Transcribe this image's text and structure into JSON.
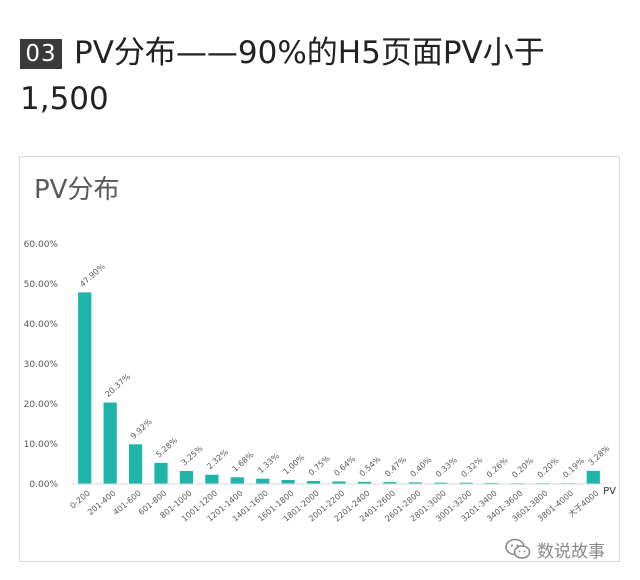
{
  "header": {
    "section_number": "03",
    "title_line1": "PV分布——90%的H5页面PV小于",
    "title_line2": "1,500"
  },
  "watermark": {
    "icon": "wechat-icon",
    "text": "数说故事"
  },
  "colors": {
    "bar": "#1fb5a8",
    "axis": "#d9d9d9",
    "tick_text": "#595959"
  },
  "chart_data": {
    "type": "bar",
    "title": "PV分布",
    "xlabel": "PV",
    "ylabel": "",
    "ylim": [
      0,
      60
    ],
    "yticks": [
      "0.00%",
      "10.00%",
      "20.00%",
      "30.00%",
      "40.00%",
      "50.00%",
      "60.00%"
    ],
    "grid": false,
    "categories": [
      "0-200",
      "201-400",
      "401-600",
      "601-800",
      "801-1000",
      "1001-1200",
      "1201-1400",
      "1401-1600",
      "1601-1800",
      "1801-2000",
      "2001-2200",
      "2201-2400",
      "2401-2600",
      "2601-2800",
      "2801-3000",
      "3001-3200",
      "3201-3400",
      "3401-3600",
      "3601-3800",
      "3801-4000",
      "大于4000"
    ],
    "values": [
      47.9,
      20.37,
      9.92,
      5.28,
      3.25,
      2.32,
      1.68,
      1.33,
      1.0,
      0.75,
      0.64,
      0.54,
      0.47,
      0.4,
      0.33,
      0.32,
      0.26,
      0.2,
      0.2,
      0.19,
      3.28
    ],
    "data_labels": [
      "47.90%",
      "20.37%",
      "9.92%",
      "5.28%",
      "3.25%",
      "2.32%",
      "1.68%",
      "1.33%",
      "1.00%",
      "0.75%",
      "0.64%",
      "0.54%",
      "0.47%",
      "0.40%",
      "0.33%",
      "0.32%",
      "0.26%",
      "0.20%",
      "0.20%",
      "0.19%",
      "3.28%"
    ]
  }
}
